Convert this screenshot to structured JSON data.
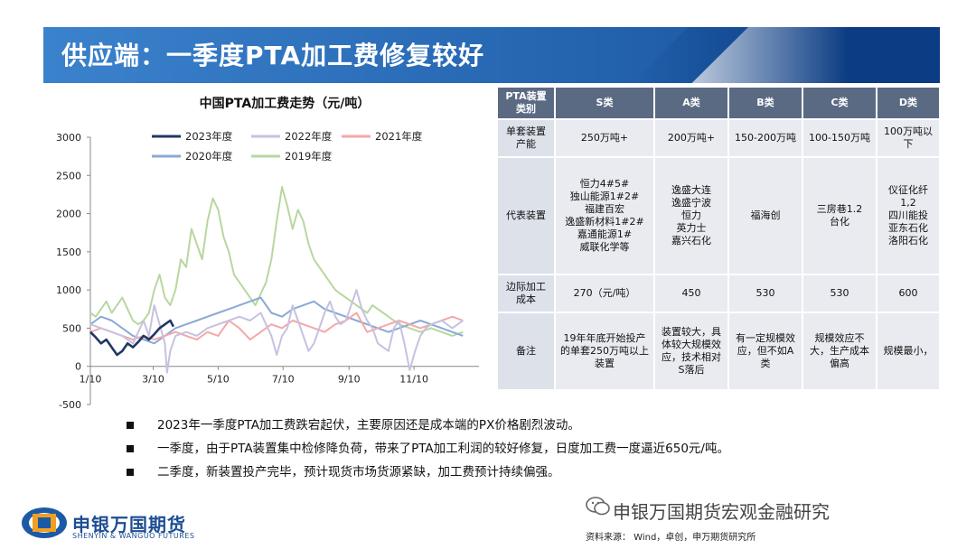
{
  "slide": {
    "title": "供应端：一季度PTA加工费修复较好"
  },
  "chart_data": {
    "type": "line",
    "title": "中国PTA加工费走势（元/吨）",
    "x_ticks": [
      "1/10",
      "3/10",
      "5/10",
      "7/10",
      "9/10",
      "11/10"
    ],
    "y_ticks": [
      "3000",
      "2500",
      "2000",
      "1500",
      "1000",
      "500",
      "0",
      "-500"
    ],
    "ylim": [
      -500,
      3000
    ],
    "legend_placement": "top",
    "series": [
      {
        "name": "2023年度",
        "color": "#1f3864",
        "values": [
          [
            0,
            450
          ],
          [
            5,
            380
          ],
          [
            10,
            300
          ],
          [
            15,
            350
          ],
          [
            20,
            250
          ],
          [
            25,
            150
          ],
          [
            30,
            200
          ],
          [
            35,
            300
          ],
          [
            40,
            250
          ],
          [
            45,
            320
          ],
          [
            50,
            400
          ],
          [
            55,
            350
          ],
          [
            60,
            420
          ],
          [
            65,
            500
          ],
          [
            70,
            550
          ],
          [
            75,
            600
          ],
          [
            78,
            520
          ]
        ]
      },
      {
        "name": "2022年度",
        "color": "#c7c1e0",
        "values": [
          [
            0,
            550
          ],
          [
            10,
            500
          ],
          [
            20,
            450
          ],
          [
            30,
            400
          ],
          [
            40,
            300
          ],
          [
            50,
            600
          ],
          [
            55,
            400
          ],
          [
            60,
            800
          ],
          [
            65,
            550
          ],
          [
            70,
            300
          ],
          [
            72,
            -80
          ],
          [
            75,
            200
          ],
          [
            80,
            400
          ],
          [
            90,
            450
          ],
          [
            100,
            400
          ],
          [
            110,
            500
          ],
          [
            120,
            550
          ],
          [
            130,
            600
          ],
          [
            140,
            650
          ],
          [
            150,
            600
          ],
          [
            160,
            700
          ],
          [
            170,
            400
          ],
          [
            175,
            150
          ],
          [
            180,
            400
          ],
          [
            185,
            500
          ],
          [
            190,
            800
          ],
          [
            195,
            600
          ],
          [
            200,
            400
          ],
          [
            205,
            200
          ],
          [
            210,
            300
          ],
          [
            215,
            500
          ],
          [
            220,
            700
          ],
          [
            225,
            850
          ],
          [
            230,
            650
          ],
          [
            235,
            550
          ],
          [
            240,
            600
          ],
          [
            245,
            800
          ],
          [
            250,
            1000
          ],
          [
            255,
            750
          ],
          [
            260,
            600
          ],
          [
            265,
            500
          ],
          [
            270,
            300
          ],
          [
            275,
            250
          ],
          [
            280,
            200
          ],
          [
            285,
            500
          ],
          [
            290,
            600
          ],
          [
            295,
            300
          ],
          [
            300,
            -50
          ],
          [
            305,
            200
          ],
          [
            310,
            400
          ],
          [
            315,
            500
          ],
          [
            320,
            550
          ],
          [
            330,
            600
          ],
          [
            340,
            500
          ],
          [
            350,
            600
          ]
        ]
      },
      {
        "name": "2021年度",
        "color": "#f4a8a8",
        "values": [
          [
            0,
            450
          ],
          [
            10,
            500
          ],
          [
            20,
            450
          ],
          [
            30,
            400
          ],
          [
            40,
            350
          ],
          [
            50,
            400
          ],
          [
            60,
            350
          ],
          [
            70,
            400
          ],
          [
            80,
            450
          ],
          [
            90,
            400
          ],
          [
            100,
            350
          ],
          [
            110,
            450
          ],
          [
            120,
            400
          ],
          [
            130,
            600
          ],
          [
            140,
            500
          ],
          [
            150,
            350
          ],
          [
            160,
            450
          ],
          [
            170,
            550
          ],
          [
            180,
            500
          ],
          [
            190,
            600
          ],
          [
            200,
            550
          ],
          [
            210,
            500
          ],
          [
            220,
            450
          ],
          [
            230,
            550
          ],
          [
            240,
            600
          ],
          [
            250,
            700
          ],
          [
            260,
            450
          ],
          [
            270,
            500
          ],
          [
            280,
            550
          ],
          [
            290,
            600
          ],
          [
            300,
            550
          ],
          [
            310,
            500
          ],
          [
            320,
            550
          ],
          [
            330,
            600
          ],
          [
            340,
            650
          ],
          [
            350,
            600
          ]
        ]
      },
      {
        "name": "2020年度",
        "color": "#8aa9d6",
        "values": [
          [
            0,
            550
          ],
          [
            10,
            650
          ],
          [
            20,
            600
          ],
          [
            30,
            500
          ],
          [
            40,
            400
          ],
          [
            50,
            350
          ],
          [
            60,
            300
          ],
          [
            70,
            400
          ],
          [
            80,
            500
          ],
          [
            90,
            550
          ],
          [
            100,
            600
          ],
          [
            110,
            650
          ],
          [
            120,
            700
          ],
          [
            130,
            750
          ],
          [
            140,
            800
          ],
          [
            150,
            850
          ],
          [
            160,
            900
          ],
          [
            170,
            700
          ],
          [
            180,
            650
          ],
          [
            190,
            750
          ],
          [
            200,
            800
          ],
          [
            210,
            850
          ],
          [
            220,
            750
          ],
          [
            230,
            700
          ],
          [
            240,
            650
          ],
          [
            250,
            600
          ],
          [
            260,
            550
          ],
          [
            270,
            500
          ],
          [
            280,
            450
          ],
          [
            290,
            500
          ],
          [
            300,
            550
          ],
          [
            310,
            600
          ],
          [
            320,
            550
          ],
          [
            330,
            500
          ],
          [
            340,
            450
          ],
          [
            350,
            400
          ]
        ]
      },
      {
        "name": "2019年度",
        "color": "#b7d7a0",
        "values": [
          [
            0,
            700
          ],
          [
            5,
            650
          ],
          [
            10,
            750
          ],
          [
            15,
            850
          ],
          [
            20,
            700
          ],
          [
            25,
            800
          ],
          [
            30,
            900
          ],
          [
            35,
            750
          ],
          [
            40,
            600
          ],
          [
            45,
            550
          ],
          [
            50,
            600
          ],
          [
            55,
            700
          ],
          [
            60,
            1000
          ],
          [
            65,
            1200
          ],
          [
            70,
            900
          ],
          [
            75,
            800
          ],
          [
            80,
            1000
          ],
          [
            85,
            1400
          ],
          [
            90,
            1300
          ],
          [
            95,
            1800
          ],
          [
            100,
            1600
          ],
          [
            105,
            1400
          ],
          [
            110,
            1900
          ],
          [
            115,
            2200
          ],
          [
            120,
            2050
          ],
          [
            125,
            1700
          ],
          [
            130,
            1500
          ],
          [
            135,
            1200
          ],
          [
            140,
            1100
          ],
          [
            145,
            1000
          ],
          [
            150,
            900
          ],
          [
            155,
            800
          ],
          [
            160,
            950
          ],
          [
            165,
            1100
          ],
          [
            170,
            1400
          ],
          [
            175,
            1900
          ],
          [
            180,
            2350
          ],
          [
            185,
            2100
          ],
          [
            190,
            1800
          ],
          [
            195,
            2050
          ],
          [
            200,
            1900
          ],
          [
            205,
            1600
          ],
          [
            210,
            1400
          ],
          [
            215,
            1300
          ],
          [
            220,
            1200
          ],
          [
            225,
            1100
          ],
          [
            230,
            1000
          ],
          [
            235,
            950
          ],
          [
            240,
            900
          ],
          [
            245,
            850
          ],
          [
            250,
            800
          ],
          [
            255,
            750
          ],
          [
            260,
            700
          ],
          [
            265,
            800
          ],
          [
            270,
            750
          ],
          [
            275,
            700
          ],
          [
            280,
            650
          ],
          [
            285,
            600
          ],
          [
            290,
            550
          ],
          [
            300,
            500
          ],
          [
            310,
            450
          ],
          [
            320,
            500
          ],
          [
            330,
            450
          ],
          [
            340,
            400
          ],
          [
            350,
            450
          ]
        ]
      }
    ]
  },
  "table": {
    "headers": [
      "PTA装置类别",
      "S类",
      "A类",
      "B类",
      "C类",
      "D类"
    ],
    "rows": [
      [
        "单套装置产能",
        "250万吨+",
        "200万吨+",
        "150-200万吨",
        "100-150万吨",
        "100万吨以下"
      ],
      [
        "代表装置",
        "恒力4#5#\n独山能源1#2#\n福建百宏\n逸盛新材料1#2#\n嘉通能源1#\n威联化学等",
        "逸盛大连\n逸盛宁波\n恒力\n英力士\n嘉兴石化",
        "福海创",
        "三房巷1.2\n台化",
        "仪征化纤1,2\n四川能投\n亚东石化\n洛阳石化"
      ],
      [
        "边际加工成本",
        "270（元/吨）",
        "450",
        "530",
        "530",
        "600"
      ],
      [
        "备注",
        "19年年底开始投产的单套250万吨以上装置",
        "装置较大，具体较大规模效应，技术相对S落后",
        "有一定规模效应，但不如A类",
        "规模效应不大，生产成本偏高",
        "规模最小，"
      ]
    ]
  },
  "bullets": [
    "2023年一季度PTA加工费跌宕起伏，主要原因还是成本端的PX价格剧烈波动。",
    "一季度，由于PTA装置集中检修降负荷，带来了PTA加工利润的较好修复，日度加工费一度逼近650元/吨。",
    "二季度，新装置投产完毕，预计现货市场货源紧缺，加工费预计持续偏强。"
  ],
  "footer": {
    "logo_cn": "申银万国期货",
    "logo_en": "SHENYIN & WANGUO FUTURES",
    "watermark": "申银万国期货宏观金融研究",
    "source": "资料来源：  Wind，卓创，申万期货研究所"
  }
}
